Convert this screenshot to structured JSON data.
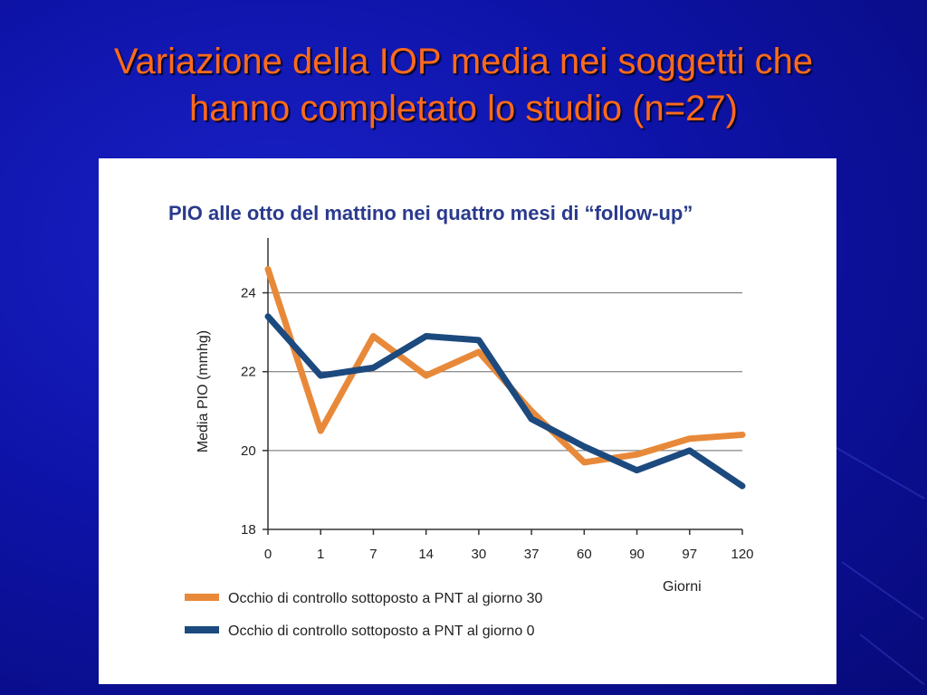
{
  "slide": {
    "title_line1": "Variazione della IOP media nei soggetti che",
    "title_line2": "hanno completato lo studio (n=27)"
  },
  "colors": {
    "background": "#0e13a8",
    "title": "#ff6a1a",
    "chart_title": "#2a3a8c",
    "series_orange": "#e8893a",
    "series_blue": "#1c4a7e"
  },
  "chart_data": {
    "type": "line",
    "title": "PIO alle otto del mattino nei quattro mesi di “follow-up”",
    "xlabel": "Giorni",
    "ylabel": "Media PIO (mmhg)",
    "categories": [
      "0",
      "1",
      "7",
      "14",
      "30",
      "37",
      "60",
      "90",
      "97",
      "120"
    ],
    "y_ticks": [
      18,
      20,
      22,
      24
    ],
    "ylim": [
      18,
      25
    ],
    "grid": "horizontal at 20, 22, 24",
    "legend_position": "bottom-left",
    "series": [
      {
        "name": "Occhio di controllo sottoposto a PNT al giorno 30",
        "color": "#e8893a",
        "values": [
          24.6,
          20.5,
          22.9,
          21.9,
          22.5,
          21.0,
          19.7,
          19.9,
          20.3,
          20.4
        ]
      },
      {
        "name": "Occhio di controllo sottoposto a PNT al giorno 0",
        "color": "#1c4a7e",
        "values": [
          23.4,
          21.9,
          22.1,
          22.9,
          22.8,
          20.8,
          20.1,
          19.5,
          20.0,
          19.1
        ]
      }
    ]
  }
}
